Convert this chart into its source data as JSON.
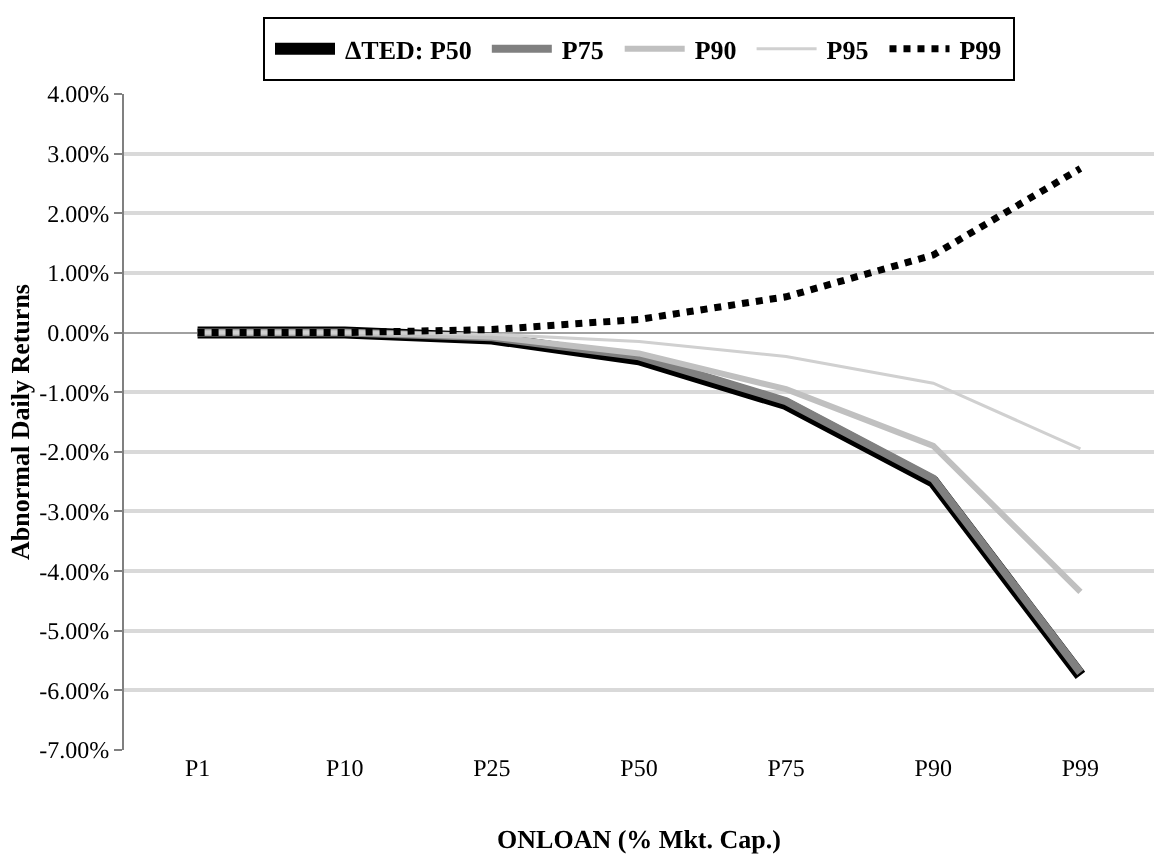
{
  "chart_data": {
    "type": "line",
    "xlabel": "ONLOAN (% Mkt. Cap.)",
    "ylabel": "Abnormal Daily Returns",
    "categories": [
      "P1",
      "P10",
      "P25",
      "P50",
      "P75",
      "P90",
      "P99"
    ],
    "series": [
      {
        "name": "ΔTED: P50",
        "color": "#000000",
        "line_style": "solid",
        "values": [
          0,
          0,
          -0.1,
          -0.45,
          -1.2,
          -2.5,
          -5.75
        ]
      },
      {
        "name": "P75",
        "color": "#808080",
        "line_style": "solid",
        "values": [
          0,
          0,
          -0.08,
          -0.4,
          -1.15,
          -2.45,
          -5.7
        ]
      },
      {
        "name": "P90",
        "color": "#c0c0c0",
        "line_style": "solid",
        "values": [
          0,
          0,
          -0.07,
          -0.35,
          -0.95,
          -1.9,
          -4.35
        ]
      },
      {
        "name": "P95",
        "color": "#d0d0d0",
        "line_style": "solid",
        "values": [
          0,
          0,
          -0.03,
          -0.15,
          -0.4,
          -0.85,
          -1.95
        ]
      },
      {
        "name": "P99",
        "color": "#000000",
        "line_style": "dotted",
        "values": [
          0,
          0,
          0.05,
          0.22,
          0.6,
          1.3,
          2.75
        ]
      }
    ],
    "ylim": [
      -7,
      4
    ],
    "yticks": [
      {
        "value": -7,
        "label": "-7.00%"
      },
      {
        "value": -6,
        "label": "-6.00%"
      },
      {
        "value": -5,
        "label": "-5.00%"
      },
      {
        "value": -4,
        "label": "-4.00%"
      },
      {
        "value": -3,
        "label": "-3.00%"
      },
      {
        "value": -2,
        "label": "-2.00%"
      },
      {
        "value": -1,
        "label": "-1.00%"
      },
      {
        "value": 0,
        "label": "0.00%"
      },
      {
        "value": 1,
        "label": "1.00%"
      },
      {
        "value": 2,
        "label": "2.00%"
      },
      {
        "value": 3,
        "label": "3.00%"
      },
      {
        "value": 4,
        "label": "4.00%"
      }
    ],
    "grid": "y",
    "legend": "top",
    "marker": "none"
  }
}
